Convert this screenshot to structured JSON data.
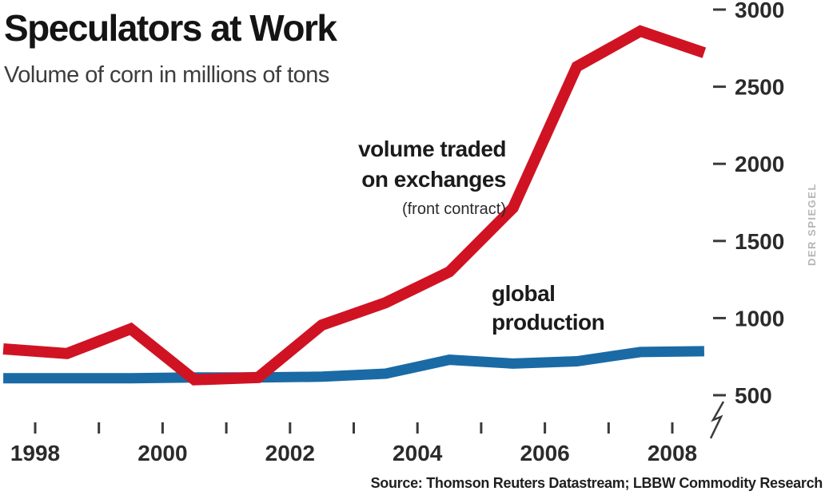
{
  "header": {
    "title": "Speculators at Work",
    "subtitle": "Volume of corn in millions of tons"
  },
  "annotations": {
    "red_label_line1": "volume traded",
    "red_label_line2": "on exchanges",
    "red_sublabel": "(front contract)",
    "blue_label_line1": "global",
    "blue_label_line2": "production"
  },
  "watermark": "DER SPIEGEL",
  "source": "Source: Thomson Reuters Datastream; LBBW Commodity Research",
  "colors": {
    "red_series": "#d01323",
    "blue_series": "#1a6aa5",
    "axis": "#3a3a3a",
    "watermark": "#b5b5b5"
  },
  "chart_data": {
    "type": "line",
    "title": "Speculators at Work",
    "subtitle": "Volume of corn in millions of tons",
    "unit": "millions of tons",
    "x": [
      1997.5,
      1998.5,
      1999.5,
      2000.5,
      2001.5,
      2002.5,
      2003.5,
      2004.5,
      2005.5,
      2006.5,
      2007.5,
      2008.5
    ],
    "series": [
      {
        "name": "volume traded on exchanges (front contract)",
        "color": "#d01323",
        "values": [
          800,
          770,
          930,
          600,
          615,
          955,
          1100,
          1300,
          1715,
          2630,
          2860,
          2720
        ]
      },
      {
        "name": "global production",
        "color": "#1a6aa5",
        "values": [
          610,
          610,
          610,
          615,
          615,
          620,
          640,
          730,
          705,
          720,
          780,
          785
        ]
      }
    ],
    "x_ticks": [
      1998,
      1999,
      2000,
      2001,
      2002,
      2003,
      2004,
      2005,
      2006,
      2007,
      2008
    ],
    "x_label_years": [
      1998,
      2000,
      2002,
      2004,
      2006,
      2008
    ],
    "y_ticks": [
      3000,
      2500,
      2000,
      1500,
      1000,
      500
    ],
    "y_axis_side": "right",
    "ylim": [
      500,
      3000
    ],
    "xlim": [
      1997.5,
      2008.5
    ],
    "axis_break": true,
    "grid": false,
    "legend": "inline-annotations"
  }
}
